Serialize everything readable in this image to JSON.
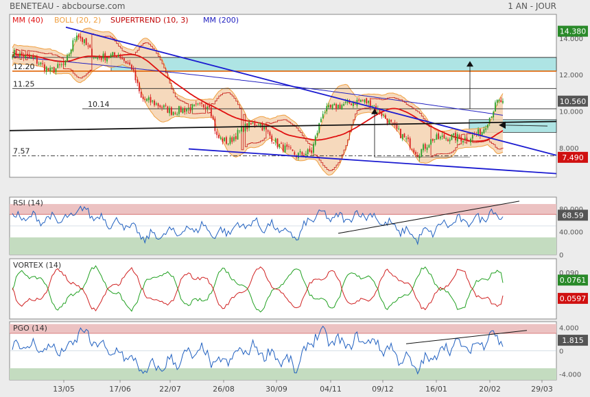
{
  "header": {
    "title": "BENETEAU - abcbourse.com",
    "period": "1 AN - JOUR"
  },
  "legend": {
    "mm40": "MM (40)",
    "boll": "BOLL (20, 2)",
    "supertrend": "SUPERTREND (10, 3)",
    "mm200": "MM (200)"
  },
  "colors": {
    "mm40": "#e01010",
    "boll": "#f0a040",
    "bollFill": "#f5d2b0",
    "supertrend": "#c00000",
    "mm200": "#2020c0",
    "candleUp": "#2aa02a",
    "candleDown": "#d82020",
    "zone": "#aee4e4",
    "trend": "#1a1ad0",
    "support": "#111111",
    "orangeLine": "#e06000",
    "rsi": "#2060c0",
    "vortexPlus": "#20a020",
    "vortexMinus": "#d02020",
    "pgo": "#2060c0",
    "overbought": "#ecc2c2",
    "oversold": "#c4dcc0",
    "green": "#2a8a2a",
    "red": "#d01010",
    "grey": "#555555"
  },
  "chart_data": [
    {
      "type": "candlestick",
      "name": "price",
      "x_labels": [
        "13/05",
        "17/06",
        "22/07",
        "26/08",
        "30/09",
        "04/11",
        "09/12",
        "16/01",
        "20/02",
        "29/03"
      ],
      "y_ticks": [
        8,
        10,
        12,
        14
      ],
      "y_tick_labels": [
        "8.000",
        "10.000",
        "12.000",
        "14.000"
      ],
      "ylim": [
        6.4,
        15.3
      ],
      "levels": [
        {
          "label": "12.20",
          "value": 12.2
        },
        {
          "label": "11.25",
          "value": 11.25
        },
        {
          "label": "10.14",
          "value": 10.14
        },
        {
          "label": "7.57",
          "value": 7.57
        }
      ],
      "badges": [
        {
          "label": "14.380",
          "value": 14.38,
          "color": "green"
        },
        {
          "label": "10.560",
          "value": 10.56,
          "color": "grey"
        },
        {
          "label": "7.490",
          "value": 7.49,
          "color": "red"
        }
      ],
      "last_close": 10.56
    },
    {
      "type": "line",
      "name": "RSI (14)",
      "ylim": [
        0,
        100
      ],
      "y_ticks": [
        0,
        40,
        80
      ],
      "y_tick_labels": [
        "0",
        "40.000",
        "80.000"
      ],
      "zones": [
        30,
        70
      ],
      "last": "68.59"
    },
    {
      "type": "line",
      "name": "VORTEX (14)",
      "y_ticks": [
        1
      ],
      "y_tick_labels": [
        "0.090"
      ],
      "last_plus": "0.0761",
      "last_minus": "0.0597"
    },
    {
      "type": "line",
      "name": "PGO (14)",
      "ylim": [
        -5,
        5
      ],
      "y_ticks": [
        4,
        0,
        -4
      ],
      "y_tick_labels": [
        "4.000",
        "0",
        "-4.000"
      ],
      "zones": [
        -3,
        3
      ],
      "last": "1.815"
    }
  ]
}
